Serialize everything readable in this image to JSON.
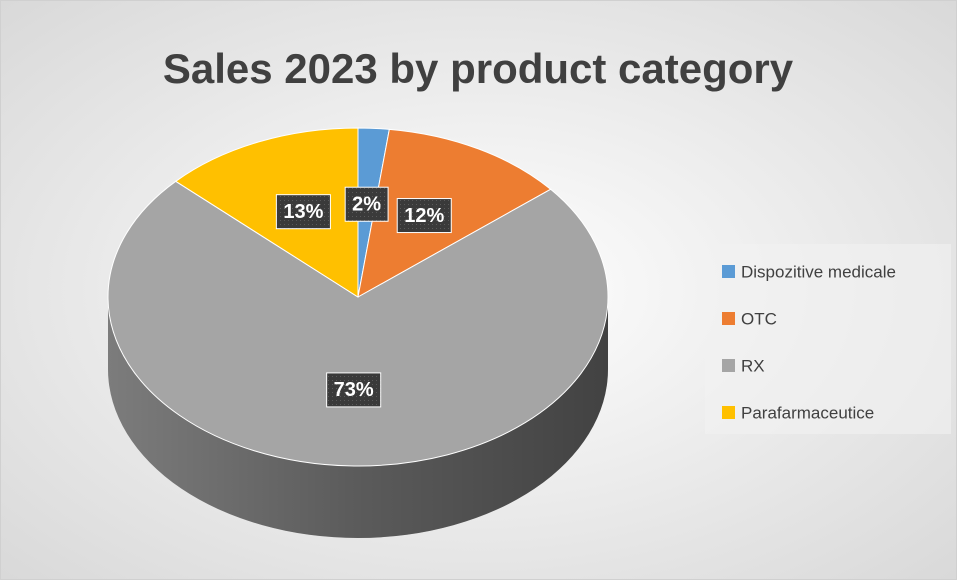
{
  "chart_data": {
    "type": "pie",
    "title": "Sales 2023 by product category",
    "categories": [
      "Dispozitive medicale",
      "OTC",
      "RX",
      "Parafarmaceutice"
    ],
    "values": [
      2,
      12,
      73,
      13
    ],
    "value_labels": [
      "2%",
      "12%",
      "73%",
      "13%"
    ],
    "colors": [
      "#5b9bd5",
      "#ed7d31",
      "#a5a5a5",
      "#ffc000"
    ],
    "legend": "right",
    "three_d": true
  }
}
